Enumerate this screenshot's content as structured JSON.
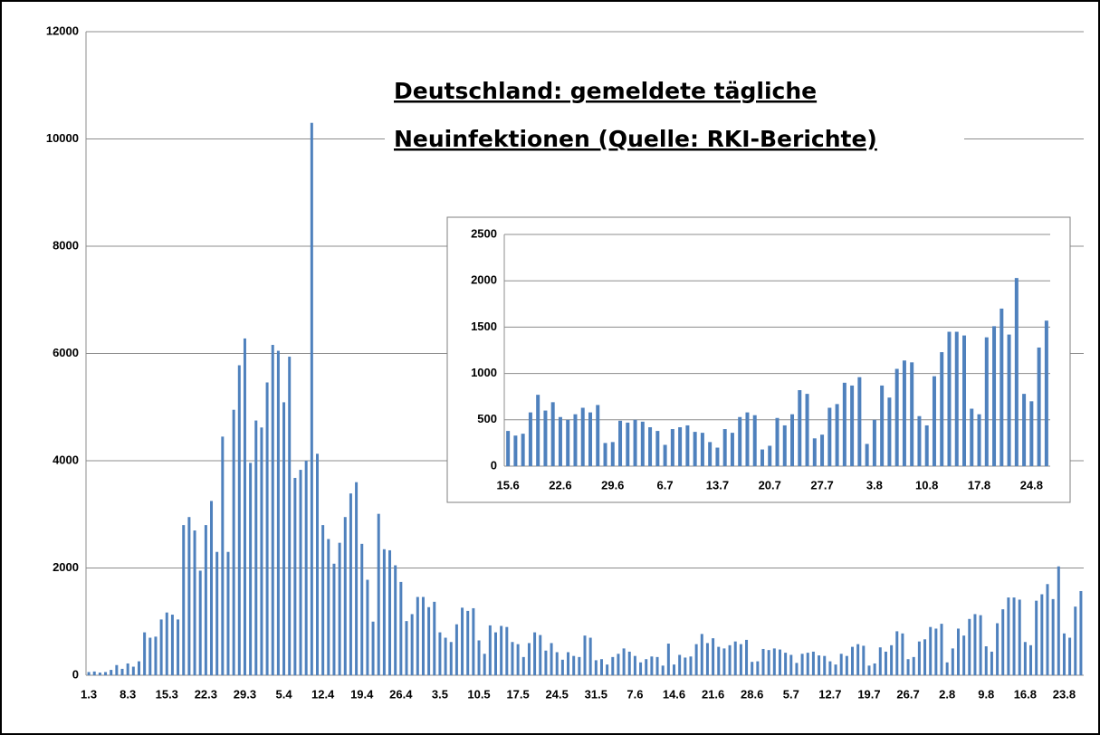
{
  "chart_data": [
    {
      "type": "bar",
      "title": [
        "Deutschland:  gemeldete tägliche",
        "Neuinfektionen (Quelle: RKI-Berichte)"
      ],
      "color": "#4f81bd",
      "grid": true,
      "ylim": [
        0,
        12000
      ],
      "yticks": [
        0,
        2000,
        4000,
        6000,
        8000,
        10000,
        12000
      ],
      "categories": [
        "1.3",
        null,
        null,
        null,
        null,
        null,
        null,
        "8.3",
        null,
        null,
        null,
        null,
        null,
        null,
        "15.3",
        null,
        null,
        null,
        null,
        null,
        null,
        "22.3",
        null,
        null,
        null,
        null,
        null,
        null,
        "29.3",
        null,
        null,
        null,
        null,
        null,
        null,
        "5.4",
        null,
        null,
        null,
        null,
        null,
        null,
        "12.4",
        null,
        null,
        null,
        null,
        null,
        null,
        "19.4",
        null,
        null,
        null,
        null,
        null,
        null,
        "26.4",
        null,
        null,
        null,
        null,
        null,
        null,
        "3.5",
        null,
        null,
        null,
        null,
        null,
        null,
        "10.5",
        null,
        null,
        null,
        null,
        null,
        null,
        "17.5",
        null,
        null,
        null,
        null,
        null,
        null,
        "24.5",
        null,
        null,
        null,
        null,
        null,
        null,
        "31.5",
        null,
        null,
        null,
        null,
        null,
        null,
        "7.6",
        null,
        null,
        null,
        null,
        null,
        null,
        "14.6",
        null,
        null,
        null,
        null,
        null,
        null,
        "21.6",
        null,
        null,
        null,
        null,
        null,
        null,
        "28.6",
        null,
        null,
        null,
        null,
        null,
        null,
        "5.7",
        null,
        null,
        null,
        null,
        null,
        null,
        "12.7",
        null,
        null,
        null,
        null,
        null,
        null,
        "19.7",
        null,
        null,
        null,
        null,
        null,
        null,
        "26.7",
        null,
        null,
        null,
        null,
        null,
        null,
        "2.8",
        null,
        null,
        null,
        null,
        null,
        null,
        "9.8",
        null,
        null,
        null,
        null,
        null,
        null,
        "16.8",
        null,
        null,
        null,
        null,
        null,
        null,
        "23.8",
        null,
        null,
        null
      ],
      "values": [
        60,
        70,
        50,
        60,
        100,
        190,
        120,
        220,
        160,
        260,
        800,
        700,
        720,
        1040,
        1170,
        1130,
        1040,
        2800,
        2950,
        2700,
        1950,
        2800,
        3250,
        2300,
        4450,
        2300,
        4950,
        5780,
        6280,
        3960,
        4750,
        4620,
        5460,
        6160,
        6050,
        5090,
        5940,
        3680,
        3830,
        4000,
        10300,
        4130,
        2800,
        2540,
        2080,
        2470,
        2950,
        3390,
        3600,
        2450,
        1780,
        1000,
        3010,
        2350,
        2330,
        2050,
        1740,
        1010,
        1140,
        1460,
        1460,
        1270,
        1370,
        800,
        700,
        620,
        950,
        1260,
        1200,
        1250,
        650,
        400,
        930,
        800,
        920,
        900,
        620,
        580,
        340,
        600,
        800,
        750,
        460,
        600,
        430,
        290,
        430,
        360,
        340,
        740,
        700,
        280,
        300,
        200,
        340,
        400,
        500,
        440,
        360,
        240,
        300,
        350,
        340,
        180,
        590,
        200,
        380,
        330,
        350,
        580,
        770,
        600,
        690,
        530,
        500,
        560,
        630,
        580,
        660,
        250,
        260,
        490,
        470,
        500,
        480,
        420,
        380,
        230,
        400,
        420,
        440,
        370,
        360,
        260,
        200,
        400,
        360,
        530,
        580,
        550,
        180,
        220,
        520,
        440,
        560,
        820,
        780,
        300,
        340,
        630,
        670,
        900,
        870,
        960,
        240,
        500,
        870,
        740,
        1050,
        1140,
        1120,
        540,
        440,
        970,
        1230,
        1450,
        1450,
        1410,
        620,
        560,
        1390,
        1510,
        1700,
        1420,
        2030,
        780,
        700,
        1280,
        1570
      ]
    },
    {
      "type": "bar",
      "color": "#4f81bd",
      "grid": true,
      "ylim": [
        0,
        2500
      ],
      "yticks": [
        0,
        500,
        1000,
        1500,
        2000,
        2500
      ],
      "categories": [
        "15.6",
        null,
        null,
        null,
        null,
        null,
        null,
        "22.6",
        null,
        null,
        null,
        null,
        null,
        null,
        "29.6",
        null,
        null,
        null,
        null,
        null,
        null,
        "6.7",
        null,
        null,
        null,
        null,
        null,
        null,
        "13.7",
        null,
        null,
        null,
        null,
        null,
        null,
        "20.7",
        null,
        null,
        null,
        null,
        null,
        null,
        "27.7",
        null,
        null,
        null,
        null,
        null,
        null,
        "3.8",
        null,
        null,
        null,
        null,
        null,
        null,
        "10.8",
        null,
        null,
        null,
        null,
        null,
        null,
        "17.8",
        null,
        null,
        null,
        null,
        null,
        null,
        "24.8",
        null,
        null
      ],
      "values": [
        380,
        330,
        350,
        580,
        770,
        600,
        690,
        530,
        500,
        560,
        630,
        580,
        660,
        250,
        260,
        490,
        470,
        500,
        480,
        420,
        380,
        230,
        400,
        420,
        440,
        370,
        360,
        260,
        200,
        400,
        360,
        530,
        580,
        550,
        180,
        220,
        520,
        440,
        560,
        820,
        780,
        300,
        340,
        630,
        670,
        900,
        870,
        960,
        240,
        500,
        870,
        740,
        1050,
        1140,
        1120,
        540,
        440,
        970,
        1230,
        1450,
        1450,
        1410,
        620,
        560,
        1390,
        1510,
        1700,
        1420,
        2030,
        780,
        700,
        1280,
        1570
      ]
    }
  ]
}
